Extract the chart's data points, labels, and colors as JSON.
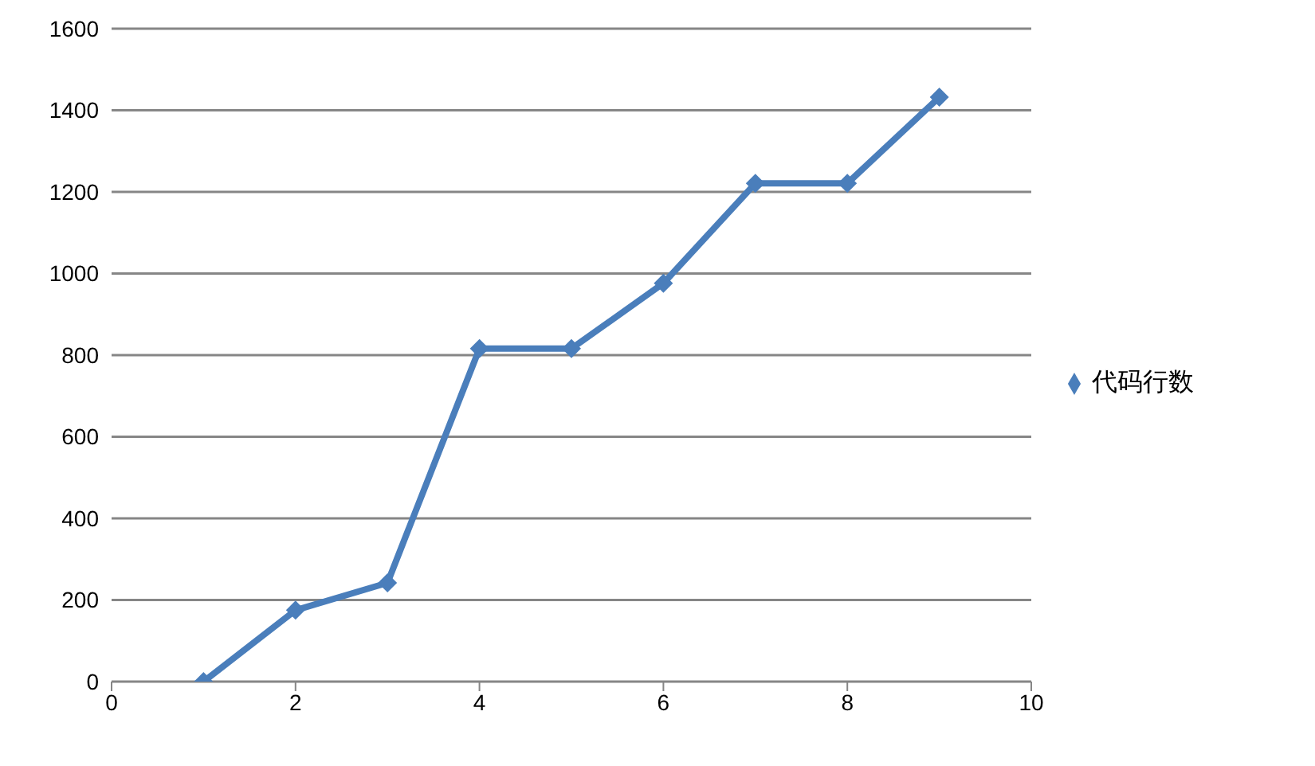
{
  "chart_data": {
    "type": "line",
    "x": [
      1,
      2,
      3,
      4,
      5,
      6,
      7,
      8,
      9
    ],
    "series": [
      {
        "name": "代码行数",
        "color": "#4a7ebb",
        "values": [
          0,
          175,
          242,
          816,
          816,
          976,
          1221,
          1221,
          1432
        ]
      }
    ],
    "xlim": [
      0,
      10
    ],
    "xticks": [
      0,
      2,
      4,
      6,
      8,
      10
    ],
    "ylim": [
      0,
      1600
    ],
    "yticks": [
      0,
      200,
      400,
      600,
      800,
      1000,
      1200,
      1400,
      1600
    ],
    "grid": "y",
    "legend": "right",
    "marker": "diamond",
    "line_style": "solid"
  }
}
